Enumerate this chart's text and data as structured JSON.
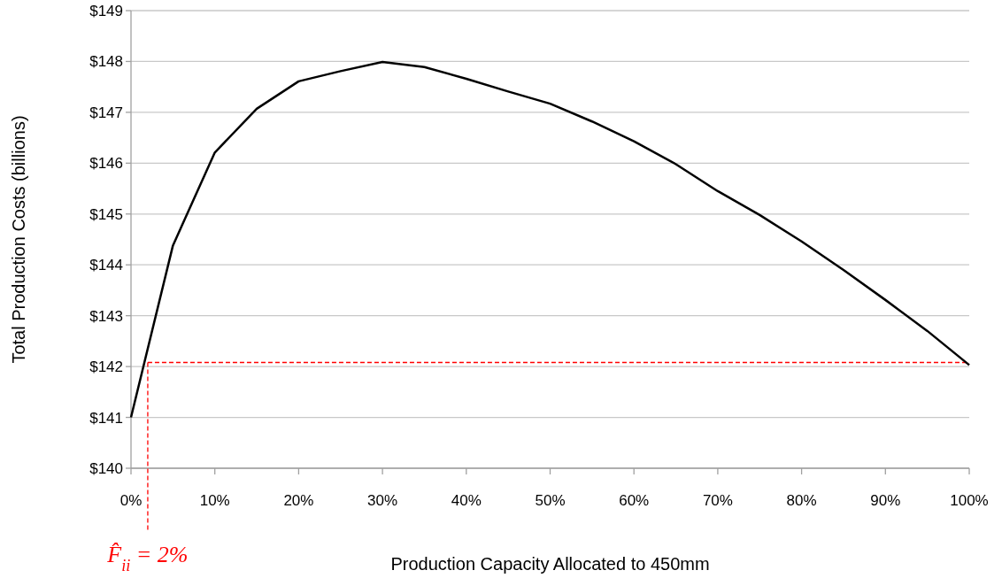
{
  "chart_data": {
    "type": "line",
    "xlabel": "Production Capacity Allocated to 450mm",
    "ylabel": "Total Production Costs (billions)",
    "x": [
      0,
      5,
      10,
      15,
      20,
      25,
      30,
      35,
      40,
      45,
      50,
      55,
      60,
      65,
      70,
      75,
      80,
      85,
      90,
      95,
      100
    ],
    "series": [
      {
        "color": "#000000",
        "values": [
          141.0,
          144.38,
          146.21,
          147.07,
          147.61,
          147.81,
          147.99,
          147.89,
          147.66,
          147.41,
          147.17,
          146.82,
          146.43,
          145.98,
          145.45,
          144.98,
          144.46,
          143.9,
          143.31,
          142.7,
          142.03
        ]
      }
    ],
    "xlim": [
      0,
      100
    ],
    "ylim": [
      140,
      149
    ],
    "xticks": [
      {
        "value": 0,
        "label": "0%"
      },
      {
        "value": 10,
        "label": "10%"
      },
      {
        "value": 20,
        "label": "20%"
      },
      {
        "value": 30,
        "label": "30%"
      },
      {
        "value": 40,
        "label": "40%"
      },
      {
        "value": 50,
        "label": "50%"
      },
      {
        "value": 60,
        "label": "60%"
      },
      {
        "value": 70,
        "label": "70%"
      },
      {
        "value": 80,
        "label": "80%"
      },
      {
        "value": 90,
        "label": "90%"
      },
      {
        "value": 100,
        "label": "100%"
      }
    ],
    "yticks": [
      {
        "value": 140,
        "label": "$140"
      },
      {
        "value": 141,
        "label": "$141"
      },
      {
        "value": 142,
        "label": "$142"
      },
      {
        "value": 143,
        "label": "$143"
      },
      {
        "value": 144,
        "label": "$144"
      },
      {
        "value": 145,
        "label": "$145"
      },
      {
        "value": 146,
        "label": "$146"
      },
      {
        "value": 147,
        "label": "$147"
      },
      {
        "value": 148,
        "label": "$148"
      },
      {
        "value": 149,
        "label": "$149"
      }
    ],
    "grid": "y",
    "marker": "none",
    "line_style": "solid",
    "ref_lines": [
      {
        "axis": "x",
        "value": 2,
        "label": "F̂$_{ii}$ = 2%",
        "color": "#ff0000",
        "line_style": "dashed"
      },
      {
        "axis": "y",
        "value": 142.08,
        "color": "#ff0000",
        "line_style": "dashed"
      }
    ]
  }
}
